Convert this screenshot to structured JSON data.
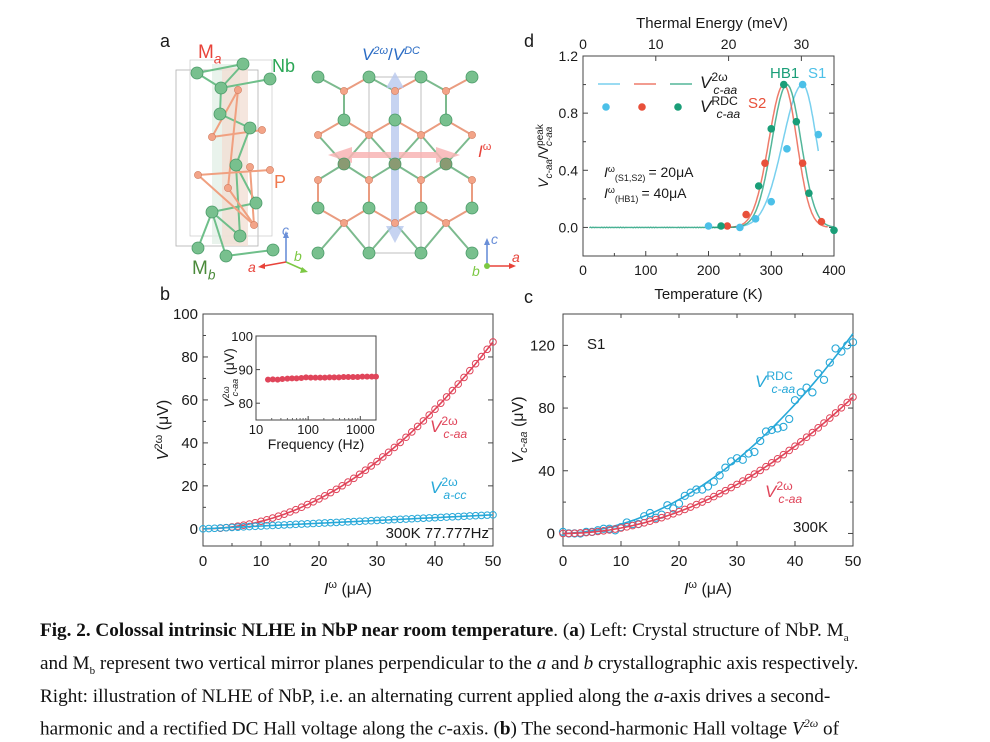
{
  "figure": {
    "panel_labels": {
      "a": "a",
      "b": "b",
      "c": "c",
      "d": "d"
    },
    "panel_a": {
      "left_labels": {
        "Ma": "M",
        "Ma_sub": "a",
        "Nb": "Nb",
        "P": "P",
        "Mb": "M",
        "Mb_sub": "b"
      },
      "left_axes": {
        "c": "c",
        "a": "a",
        "b": "b"
      },
      "right_labels": {
        "voltage": "V",
        "voltage_sup1": "2ω",
        "slash": "/",
        "voltage2": "V",
        "voltage_sup2": "DC",
        "current": "I",
        "current_sup": "ω"
      },
      "right_axes": {
        "c": "c",
        "a": "a",
        "b": "b"
      },
      "colors": {
        "nb": "#6fbf8a",
        "p": "#f0a080",
        "current_arrow": "#f8b4b4",
        "voltage_arrow": "#b8c8ee",
        "label_red": "#e8433a",
        "label_green": "#2aa655",
        "label_blue": "#2b6cc4",
        "axis_c": "#6a8fd8",
        "axis_a": "#e8433a",
        "axis_b": "#7cc843"
      }
    }
  },
  "chart_data": [
    {
      "id": "b",
      "type": "line",
      "title": "",
      "xlabel": "I^ω (μA)",
      "ylabel": "V^2ω (μV)",
      "xlim": [
        0,
        50
      ],
      "ylim": [
        -8,
        100
      ],
      "xticks": [
        0,
        10,
        20,
        30,
        40,
        50
      ],
      "yticks": [
        0,
        20,
        40,
        60,
        80,
        100
      ],
      "annotation": "300K 77.777Hz",
      "series": [
        {
          "name": "V^2ω c-aa",
          "label_main": "V",
          "label_sup": "2ω",
          "label_sub": "c-aa",
          "color": "#e0455a",
          "marker": "open-circle",
          "fit": "quadratic",
          "x_range": [
            0,
            50
          ],
          "values_at": {
            "x": [
              0,
              5,
              10,
              15,
              20,
              25,
              30,
              35,
              40,
              45,
              50
            ],
            "y": [
              0,
              1,
              3.5,
              8,
              14,
              21.5,
              31,
              42,
              55,
              70,
              87
            ]
          }
        },
        {
          "name": "V^2ω a-cc",
          "label_main": "V",
          "label_sup": "2ω",
          "label_sub": "a-cc",
          "color": "#27a8d8",
          "marker": "open-circle",
          "fit": "linear",
          "x_range": [
            0,
            50
          ],
          "values_at": {
            "x": [
              0,
              10,
              20,
              30,
              40,
              50
            ],
            "y": [
              0,
              1,
              2.2,
              3.5,
              5,
              6.5
            ]
          }
        }
      ],
      "inset": {
        "type": "scatter",
        "xlabel": "Frequency (Hz)",
        "ylabel": "V^2ω c-aa (μV)",
        "ylabel_main": "V",
        "ylabel_sup": "2ω",
        "ylabel_sub": "c-aa",
        "ylabel_unit": "(μV)",
        "xscale": "log",
        "xlim": [
          10,
          2000
        ],
        "ylim": [
          75,
          100
        ],
        "xticks": [
          "10",
          "100",
          "1000"
        ],
        "yticks": [
          "80",
          "90",
          "100"
        ],
        "color": "#e0455a",
        "x": [
          17,
          21,
          26,
          32,
          40,
          49,
          60,
          74,
          91,
          112,
          138,
          170,
          209,
          257,
          316,
          389,
          479,
          589,
          725,
          892,
          1097,
          1350,
          1661,
          2000
        ],
        "y": [
          87.0,
          87.1,
          87.0,
          87.2,
          87.3,
          87.4,
          87.4,
          87.5,
          87.7,
          87.6,
          87.6,
          87.6,
          87.6,
          87.7,
          87.7,
          87.7,
          87.8,
          87.8,
          87.8,
          87.8,
          87.9,
          87.9,
          87.9,
          87.9
        ]
      }
    },
    {
      "id": "c",
      "type": "line",
      "title": "",
      "top_xlabel": "Temperature (K)",
      "xlabel": "I^ω (μA)",
      "ylabel": "V c-aa (μV)",
      "ylabel_main": "V",
      "ylabel_sub": "c-aa",
      "ylabel_unit": "(μV)",
      "xlim": [
        0,
        50
      ],
      "ylim": [
        -8,
        140
      ],
      "xticks": [
        0,
        10,
        20,
        30,
        40,
        50
      ],
      "yticks": [
        0,
        40,
        80,
        120
      ],
      "annotations": [
        "S1",
        "300K"
      ],
      "series": [
        {
          "name": "V^RDC c-aa",
          "label_main": "V",
          "label_sup": "RDC",
          "label_sub": "c-aa",
          "color": "#27a8d8",
          "marker": "open-circle",
          "fit": "quadratic",
          "x": [
            0,
            1,
            2,
            3,
            4,
            5,
            6,
            7,
            8,
            9,
            10,
            11,
            12,
            13,
            14,
            15,
            16,
            17,
            18,
            19,
            20,
            21,
            22,
            23,
            24,
            25,
            26,
            27,
            28,
            29,
            30,
            31,
            32,
            33,
            34,
            35,
            36,
            37,
            38,
            39,
            40,
            41,
            42,
            43,
            44,
            45,
            46,
            47,
            48,
            49,
            50
          ],
          "y": [
            1,
            0,
            0,
            0,
            1,
            1,
            2,
            3,
            3,
            2,
            4,
            7,
            6,
            6,
            11,
            13,
            10,
            12,
            18,
            16,
            19,
            24,
            26,
            28,
            28,
            30,
            33,
            37,
            42,
            46,
            48,
            47,
            51,
            52,
            59,
            65,
            66,
            67,
            68,
            73,
            85,
            90,
            93,
            90,
            102,
            98,
            109,
            118,
            116,
            120,
            122
          ]
        },
        {
          "name": "V^2ω c-aa",
          "label_main": "V",
          "label_sup": "2ω",
          "label_sub": "c-aa",
          "color": "#e0455a",
          "marker": "open-circle",
          "fit": "quadratic",
          "values_at": {
            "x": [
              0,
              10,
              20,
              30,
              40,
              50
            ],
            "y": [
              0,
              3.5,
              14,
              31,
              55,
              87
            ]
          }
        }
      ]
    },
    {
      "id": "d",
      "type": "line",
      "title": "",
      "xlabel": "Temperature (K)",
      "top_xlabel": "Thermal Energy (meV)",
      "ylabel": "V c-aa / V peak c-aa",
      "xlim": [
        0,
        400
      ],
      "ylim": [
        -0.2,
        1.2
      ],
      "xticks": [
        0,
        100,
        200,
        300,
        400
      ],
      "yticks": [
        "0.0",
        "0.4",
        "0.8",
        "1.2"
      ],
      "top_xticks": [
        0,
        10,
        20,
        30
      ],
      "top_xticks_K": [
        0,
        116,
        232,
        348
      ],
      "legend": {
        "placement": "top-left",
        "line_label_main": "V",
        "line_label_sup": "2ω",
        "line_label_sub": "c-aa",
        "dot_label_main": "V",
        "dot_label_sup": "RDC",
        "dot_label_sub": "c-aa"
      },
      "annotations": {
        "current1": "I",
        "current1_sup": "ω",
        "current1_sub": "(S1,S2)",
        "current1_val": "= 20μA",
        "current2": "I",
        "current2_sup": "ω",
        "current2_sub": "(HB1)",
        "current2_val": "= 40μA"
      },
      "series": [
        {
          "name": "S1",
          "color": "#4cc0e8",
          "curve": {
            "peak_T": 350,
            "width_lo": 42,
            "width_hi": 30,
            "T_range": [
              240,
              375
            ]
          },
          "points": {
            "x": [
              200,
              250,
              275,
              300,
              325,
              350,
              375
            ],
            "y": [
              0.01,
              0.0,
              0.06,
              0.18,
              0.55,
              1.0,
              0.65
            ]
          }
        },
        {
          "name": "S2",
          "color": "#e8503a",
          "curve": {
            "peak_T": 320,
            "width_lo": 32,
            "width_hi": 28,
            "T_range": [
              220,
              390
            ]
          },
          "points": {
            "x": [
              230,
              260,
              290,
              350,
              380
            ],
            "y": [
              0.01,
              0.09,
              0.45,
              0.45,
              0.04
            ]
          }
        },
        {
          "name": "HB1",
          "color": "#1a9e78",
          "curve": {
            "peak_T": 325,
            "width_lo": 32,
            "width_hi": 30,
            "T_range": [
              10,
              400
            ]
          },
          "points": {
            "x": [
              220,
              280,
              300,
              320,
              340,
              360,
              400
            ],
            "y": [
              0.01,
              0.29,
              0.69,
              1.0,
              0.74,
              0.24,
              -0.02
            ]
          }
        }
      ]
    }
  ],
  "caption": {
    "line1_bold": "Fig. 2.  Colossal intrinsic NLHE in NbP near room temperature",
    "line1_a_open": ". (",
    "line1_a_bold": "a",
    "line1_rest": ") Left: Crystal structure of NbP. M",
    "line1_sub": "a",
    "line2_pre": "and M",
    "line2_sub": "b",
    "line2_mid": " represent two vertical mirror planes perpendicular to the ",
    "line2_a": "a",
    "line2_and": " and ",
    "line2_b": "b",
    "line2_rest": " crystallographic axis respectively.",
    "line3_pre": "Right: illustration of NLHE of NbP, i.e. an alternating current applied along the ",
    "line3_a": "a",
    "line3_rest": "-axis drives a second-",
    "line4_pre": "harmonic and a rectified DC Hall voltage along the ",
    "line4_c": "c",
    "line4_mid": "-axis. (",
    "line4_b_bold": "b",
    "line4_rest": ") The second-harmonic Hall voltage ",
    "line4_v": "V",
    "line4_sup": "2ω",
    "line4_end": " of"
  }
}
